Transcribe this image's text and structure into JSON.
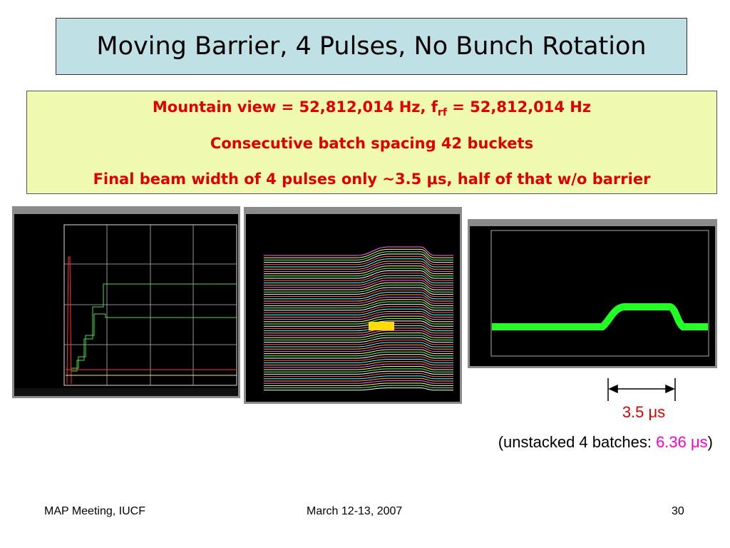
{
  "title": "Moving Barrier, 4 Pulses, No Bunch Rotation",
  "info": {
    "line1": {
      "before": "Mountain view = 52,812,014 Hz, f",
      "subscript": "rf",
      "after": " = 52,812,014 Hz"
    },
    "line2": "Consecutive batch spacing 42 buckets",
    "line3": "Final beam width of 4 pulses only ~3.5 μs, half of that w/o barrier"
  },
  "annotation": {
    "width_label": "3.5 μs",
    "note_before": "(unstacked 4 batches: ",
    "note_value": "6.36 μs",
    "note_after": ")"
  },
  "footer": {
    "left": "MAP Meeting, IUCF",
    "center": "March 12-13, 2007",
    "right": "30"
  }
}
